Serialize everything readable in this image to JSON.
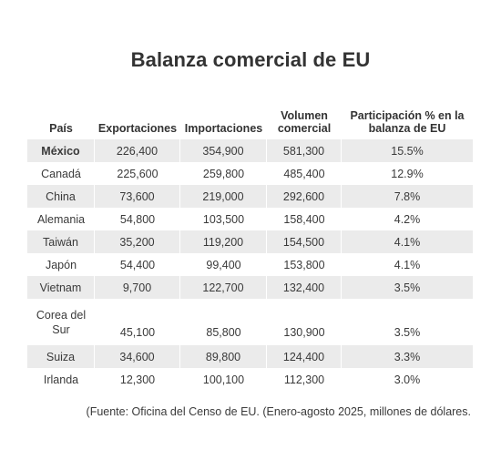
{
  "title": "Balanza comercial de EU",
  "table": {
    "headers": {
      "country": "País",
      "exports": "Exportaciones",
      "imports": "Importaciones",
      "volume": "Volumen comercial",
      "share": "Participación % en la balanza de EU"
    },
    "rows": [
      {
        "country": "México",
        "exports": "226,400",
        "imports": "354,900",
        "volume": "581,300",
        "share": "15.5%"
      },
      {
        "country": "Canadá",
        "exports": "225,600",
        "imports": "259,800",
        "volume": "485,400",
        "share": "12.9%"
      },
      {
        "country": "China",
        "exports": "73,600",
        "imports": "219,000",
        "volume": "292,600",
        "share": "7.8%"
      },
      {
        "country": "Alemania",
        "exports": "54,800",
        "imports": "103,500",
        "volume": "158,400",
        "share": "4.2%"
      },
      {
        "country": "Taiwán",
        "exports": "35,200",
        "imports": "119,200",
        "volume": "154,500",
        "share": "4.1%"
      },
      {
        "country": "Japón",
        "exports": "54,400",
        "imports": "99,400",
        "volume": "153,800",
        "share": "4.1%"
      },
      {
        "country": "Vietnam",
        "exports": "9,700",
        "imports": "122,700",
        "volume": "132,400",
        "share": "3.5%"
      },
      {
        "country": "Corea del Sur",
        "exports": "45,100",
        "imports": "85,800",
        "volume": "130,900",
        "share": "3.5%"
      },
      {
        "country": "Suiza",
        "exports": "34,600",
        "imports": "89,800",
        "volume": "124,400",
        "share": "3.3%"
      },
      {
        "country": "Irlanda",
        "exports": "12,300",
        "imports": "100,100",
        "volume": "112,300",
        "share": "3.0%"
      }
    ]
  },
  "source": "(Fuente: Oficina del Censo de EU. (Enero-agosto 2025, millones de dólares."
}
